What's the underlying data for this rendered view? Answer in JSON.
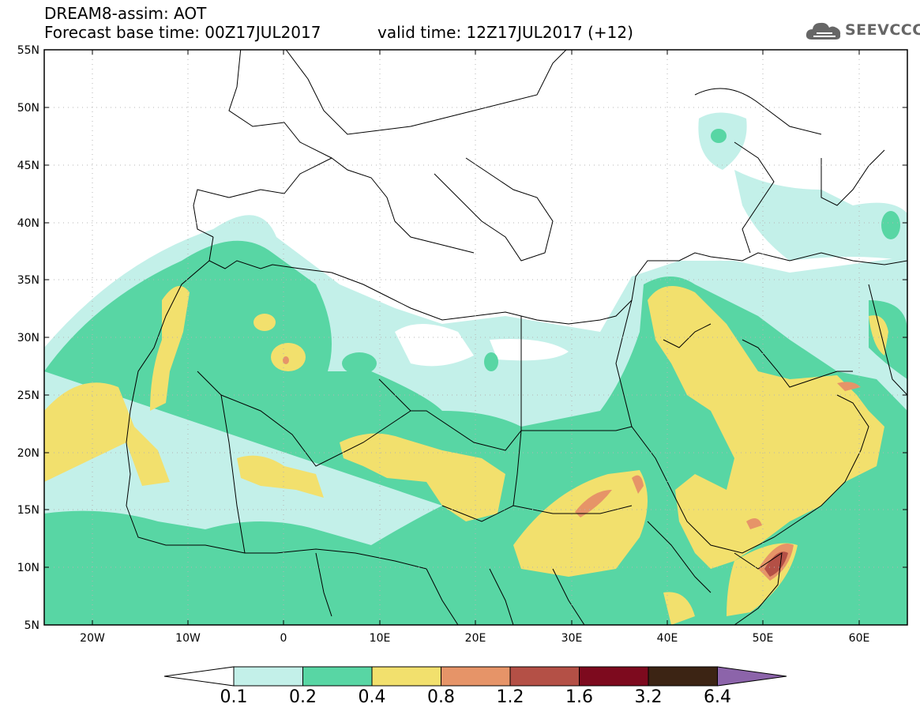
{
  "header": {
    "title": "DREAM8-assim: AOT",
    "base_time": "Forecast base time: 00Z17JUL2017",
    "valid_time": "valid time: 12Z17JUL2017 (+12)"
  },
  "logo": {
    "text": "SEEVCCC",
    "icon": "cloud-icon"
  },
  "map": {
    "lon_range": [
      -25,
      65
    ],
    "lat_range": [
      5,
      55
    ],
    "lat_ticks": [
      "5N",
      "10N",
      "15N",
      "20N",
      "25N",
      "30N",
      "35N",
      "40N",
      "45N",
      "50N",
      "55N"
    ],
    "lon_ticks": [
      "20W",
      "10W",
      "0",
      "10E",
      "20E",
      "30E",
      "40E",
      "50E",
      "60E"
    ]
  },
  "legend": {
    "labels": [
      "0.1",
      "0.2",
      "0.4",
      "0.8",
      "1.2",
      "1.6",
      "3.2",
      "6.4"
    ],
    "colors": [
      "#c3f0e9",
      "#58d6a4",
      "#f2e06d",
      "#e69468",
      "#b45046",
      "#7d0a1e",
      "#3c2414",
      "#8c64aa"
    ],
    "below_color": "#ffffff"
  },
  "colors": {
    "ocean": "#ffffff",
    "border": "#000000",
    "grid": "#b4b4b4"
  }
}
